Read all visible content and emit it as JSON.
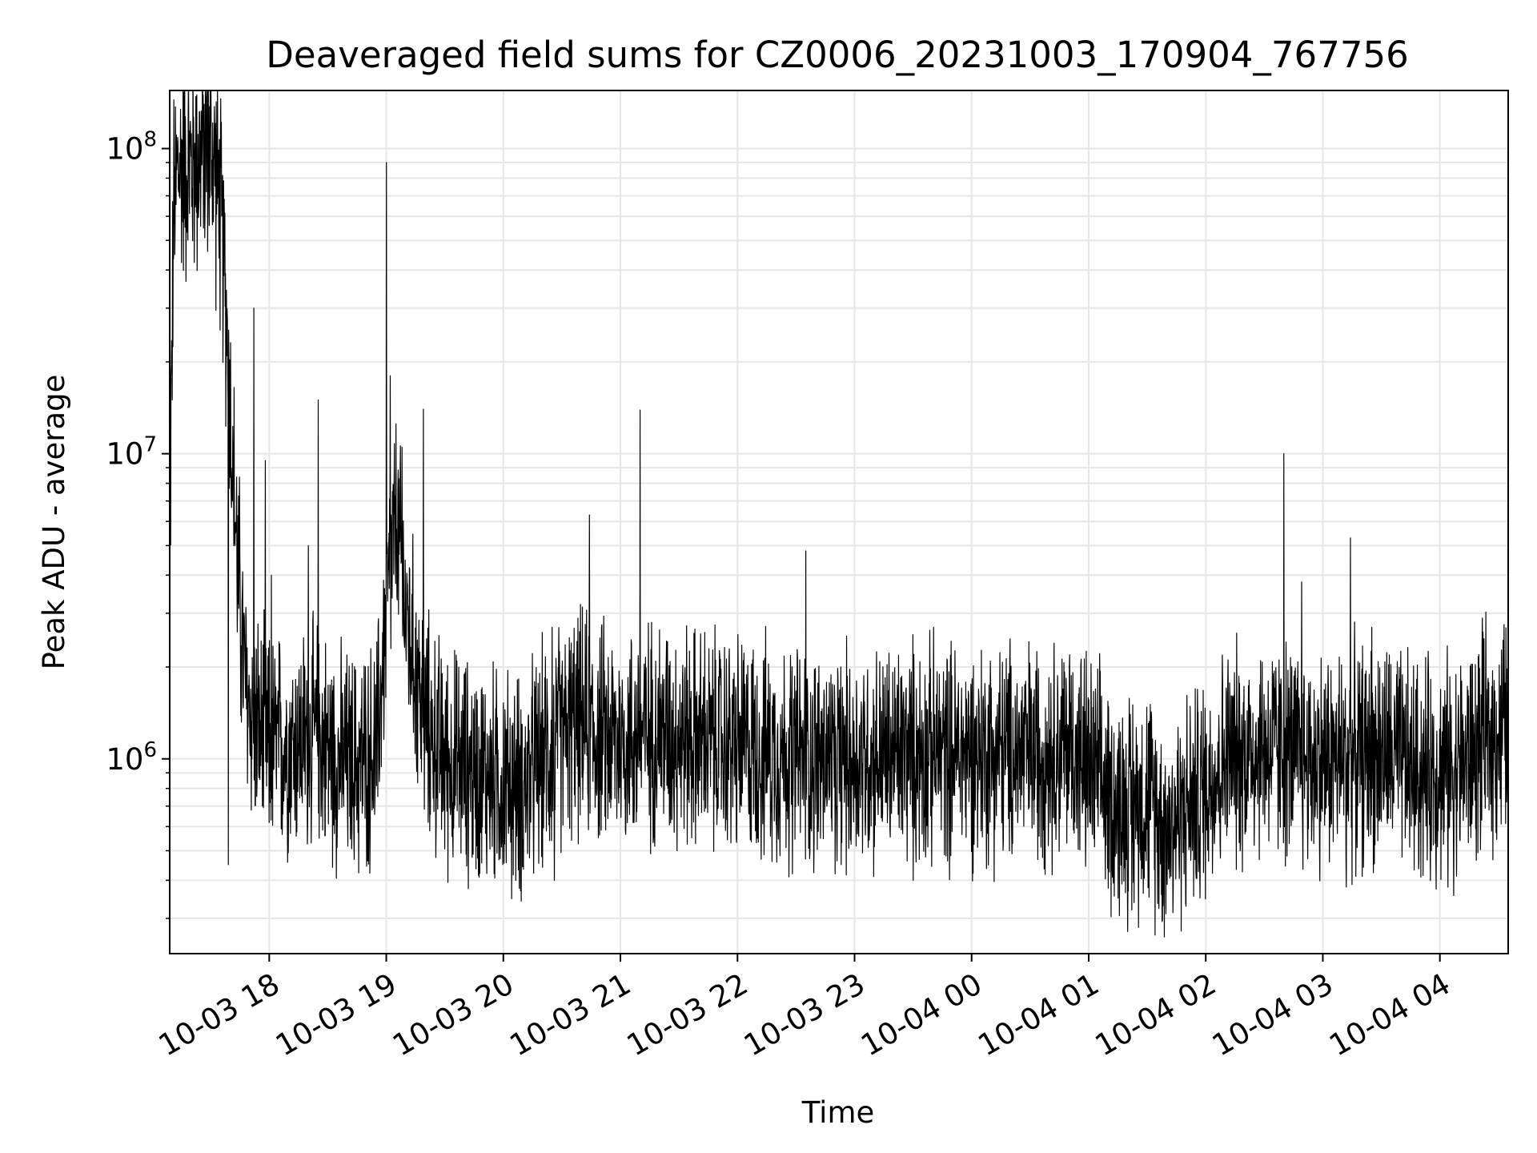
{
  "chart_data": {
    "type": "line",
    "title": "Deaveraged field sums for CZ0006_20231003_170904_767756",
    "xlabel": "Time",
    "ylabel": "Peak ADU - average",
    "yscale": "log",
    "xlim": [
      "2023-10-03 17:09",
      "2023-10-04 04:35"
    ],
    "ylim": [
      230000,
      155000000
    ],
    "x_ticks": [
      {
        "t": "2023-10-03 18:00",
        "label": "10-03 18"
      },
      {
        "t": "2023-10-03 19:00",
        "label": "10-03 19"
      },
      {
        "t": "2023-10-03 20:00",
        "label": "10-03 20"
      },
      {
        "t": "2023-10-03 21:00",
        "label": "10-03 21"
      },
      {
        "t": "2023-10-03 22:00",
        "label": "10-03 22"
      },
      {
        "t": "2023-10-03 23:00",
        "label": "10-03 23"
      },
      {
        "t": "2023-10-04 00:00",
        "label": "10-04 00"
      },
      {
        "t": "2023-10-04 01:00",
        "label": "10-04 01"
      },
      {
        "t": "2023-10-04 02:00",
        "label": "10-04 02"
      },
      {
        "t": "2023-10-04 03:00",
        "label": "10-04 03"
      },
      {
        "t": "2023-10-04 04:00",
        "label": "10-04 04"
      }
    ],
    "y_ticks": [
      {
        "value": 1000000,
        "base": "10",
        "exp": "6"
      },
      {
        "value": 10000000,
        "base": "10",
        "exp": "7"
      },
      {
        "value": 100000000,
        "base": "10",
        "exp": "8"
      }
    ],
    "grid": true,
    "line_color": "#000000",
    "grid_color": "#e6e6e6",
    "series": [
      {
        "points": [
          [
            "2023-10-03 17:09",
            5500000
          ],
          [
            "2023-10-03 17:11",
            60000000
          ],
          [
            "2023-10-03 17:13",
            85000000
          ],
          [
            "2023-10-03 17:16",
            90000000
          ],
          [
            "2023-10-03 17:20",
            88000000
          ],
          [
            "2023-10-03 17:25",
            95000000
          ],
          [
            "2023-10-03 17:28",
            105000000
          ],
          [
            "2023-10-03 17:32",
            90000000
          ],
          [
            "2023-10-03 17:35",
            60000000
          ],
          [
            "2023-10-03 17:38",
            30000000
          ],
          [
            "2023-10-03 17:41",
            10000000
          ],
          [
            "2023-10-03 17:44",
            4000000
          ],
          [
            "2023-10-03 17:48",
            1600000
          ],
          [
            "2023-10-03 17:55",
            1200000
          ],
          [
            "2023-10-03 18:00",
            1100000
          ],
          [
            "2023-10-03 18:15",
            1150000
          ],
          [
            "2023-10-03 18:25",
            1200000
          ],
          [
            "2023-10-03 18:35",
            1000000
          ],
          [
            "2023-10-03 18:45",
            950000
          ],
          [
            "2023-10-03 18:55",
            1050000
          ],
          [
            "2023-10-03 19:00",
            3000000
          ],
          [
            "2023-10-03 19:05",
            6000000
          ],
          [
            "2023-10-03 19:10",
            3000000
          ],
          [
            "2023-10-03 19:20",
            1300000
          ],
          [
            "2023-10-03 19:30",
            1000000
          ],
          [
            "2023-10-03 19:45",
            900000
          ],
          [
            "2023-10-03 20:00",
            850000
          ],
          [
            "2023-10-03 20:10",
            800000
          ],
          [
            "2023-10-03 20:20",
            1000000
          ],
          [
            "2023-10-03 20:30",
            1200000
          ],
          [
            "2023-10-03 20:40",
            1300000
          ],
          [
            "2023-10-03 20:50",
            1200000
          ],
          [
            "2023-10-03 21:00",
            1150000
          ],
          [
            "2023-10-03 21:20",
            1250000
          ],
          [
            "2023-10-03 21:40",
            1150000
          ],
          [
            "2023-10-03 22:00",
            1100000
          ],
          [
            "2023-10-03 22:20",
            1050000
          ],
          [
            "2023-10-03 22:40",
            1000000
          ],
          [
            "2023-10-03 23:00",
            1000000
          ],
          [
            "2023-10-03 23:30",
            1050000
          ],
          [
            "2023-10-04 00:00",
            1050000
          ],
          [
            "2023-10-04 00:30",
            1050000
          ],
          [
            "2023-10-04 00:50",
            1100000
          ],
          [
            "2023-10-04 01:05",
            850000
          ],
          [
            "2023-10-04 01:15",
            700000
          ],
          [
            "2023-10-04 01:30",
            750000
          ],
          [
            "2023-10-04 01:40",
            600000
          ],
          [
            "2023-10-04 01:55",
            750000
          ],
          [
            "2023-10-04 02:10",
            1000000
          ],
          [
            "2023-10-04 02:30",
            1100000
          ],
          [
            "2023-10-04 02:50",
            1000000
          ],
          [
            "2023-10-04 03:10",
            1000000
          ],
          [
            "2023-10-04 03:30",
            1050000
          ],
          [
            "2023-10-04 03:50",
            900000
          ],
          [
            "2023-10-04 04:10",
            950000
          ],
          [
            "2023-10-04 04:25",
            1150000
          ],
          [
            "2023-10-04 04:35",
            1300000
          ]
        ],
        "spikes": [
          [
            "2023-10-03 17:39",
            450000
          ],
          [
            "2023-10-03 17:52",
            30000000
          ],
          [
            "2023-10-03 17:58",
            9500000
          ],
          [
            "2023-10-03 18:01",
            4000000
          ],
          [
            "2023-10-03 18:20",
            5000000
          ],
          [
            "2023-10-03 18:25",
            15000000
          ],
          [
            "2023-10-03 19:00",
            90000000
          ],
          [
            "2023-10-03 19:02",
            18000000
          ],
          [
            "2023-10-03 19:08",
            10500000
          ],
          [
            "2023-10-03 19:19",
            14000000
          ],
          [
            "2023-10-03 20:25",
            2700000
          ],
          [
            "2023-10-03 20:26",
            400000
          ],
          [
            "2023-10-03 20:44",
            6300000
          ],
          [
            "2023-10-03 21:10",
            13900000
          ],
          [
            "2023-10-03 22:28",
            420000
          ],
          [
            "2023-10-03 22:35",
            4800000
          ],
          [
            "2023-10-03 22:50",
            420000
          ],
          [
            "2023-10-03 23:30",
            400000
          ],
          [
            "2023-10-04 00:50",
            2000000
          ],
          [
            "2023-10-04 01:22",
            320000
          ],
          [
            "2023-10-04 01:38",
            330000
          ],
          [
            "2023-10-04 01:57",
            350000
          ],
          [
            "2023-10-04 02:40",
            10000000
          ],
          [
            "2023-10-04 02:49",
            3800000
          ],
          [
            "2023-10-04 03:12",
            380000
          ],
          [
            "2023-10-04 03:14",
            5300000
          ],
          [
            "2023-10-04 03:25",
            2700000
          ],
          [
            "2023-10-04 04:04",
            2500000
          ],
          [
            "2023-10-04 04:04",
            380000
          ],
          [
            "2023-10-04 04:22",
            2600000
          ]
        ]
      }
    ]
  }
}
